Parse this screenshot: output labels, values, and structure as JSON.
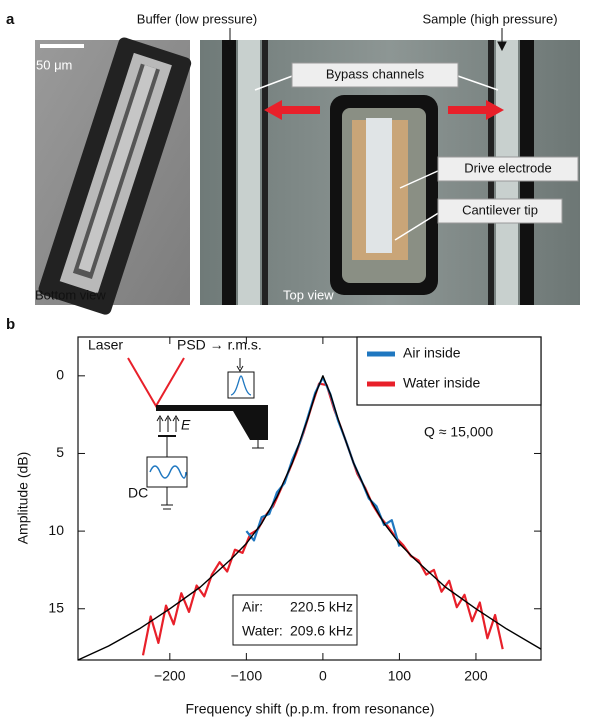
{
  "panel_a": {
    "label": "a",
    "buffer": "Buffer (low pressure)",
    "sample": "Sample (high pressure)",
    "scale_bar": "50 μm",
    "bypass": "Bypass channels",
    "drive": "Drive electrode",
    "tip": "Cantilever tip",
    "bottom_view": "Bottom view",
    "top_view": "Top view"
  },
  "chart_data": {
    "type": "line",
    "panel_label": "b",
    "xlabel": "Frequency shift (p.p.m. from resonance)",
    "ylabel": "Amplitude (dB)",
    "xlim": [
      -320,
      285
    ],
    "ylim": [
      -2.5,
      18.3
    ],
    "y_inverted": true,
    "xticks": [
      {
        "value": -200,
        "label": "−200"
      },
      {
        "value": -100,
        "label": "−100"
      },
      0,
      100,
      200
    ],
    "yticks": [
      0,
      5,
      10,
      15
    ],
    "legend": "upper right",
    "series": [
      {
        "name": "Air inside",
        "color": "#1f77c0",
        "x": [
          -100,
          -90,
          -80,
          -70,
          -60,
          -50,
          -40,
          -30,
          -20,
          -10,
          0,
          10,
          20,
          30,
          40,
          50,
          60,
          70,
          80,
          90,
          100
        ],
        "values": [
          10.0,
          10.6,
          9.1,
          8.9,
          7.5,
          6.9,
          5.4,
          4.3,
          2.7,
          1.1,
          0.1,
          1.2,
          2.9,
          4.2,
          5.6,
          6.7,
          7.9,
          8.4,
          9.6,
          9.3,
          11.0
        ]
      },
      {
        "name": "Water inside",
        "color": "#e8202a",
        "x": [
          -235,
          -225,
          -215,
          -205,
          -195,
          -185,
          -175,
          -165,
          -155,
          -145,
          -135,
          -125,
          -115,
          -105,
          -95,
          -85,
          -75,
          -65,
          -55,
          -45,
          -35,
          -25,
          -15,
          -5,
          5,
          15,
          25,
          35,
          45,
          55,
          65,
          75,
          85,
          95,
          105,
          115,
          125,
          135,
          145,
          155,
          165,
          175,
          185,
          195,
          205,
          215,
          225,
          235
        ],
        "values": [
          18.0,
          15.5,
          17.2,
          14.8,
          16.0,
          14.0,
          15.2,
          13.5,
          14.2,
          12.8,
          12.0,
          12.6,
          11.2,
          11.4,
          10.2,
          9.9,
          9.0,
          8.4,
          7.3,
          6.2,
          5.0,
          3.6,
          2.0,
          0.5,
          0.6,
          2.2,
          3.5,
          4.9,
          6.3,
          7.2,
          8.3,
          9.1,
          9.7,
          10.4,
          10.9,
          11.6,
          11.9,
          12.8,
          12.5,
          13.9,
          13.2,
          14.9,
          14.1,
          15.8,
          14.6,
          16.9,
          15.4,
          17.6
        ]
      }
    ],
    "fit": {
      "color": "#000000",
      "x": [
        -320,
        -280,
        -240,
        -200,
        -160,
        -120,
        -100,
        -80,
        -60,
        -40,
        -20,
        -10,
        0,
        10,
        20,
        40,
        60,
        80,
        100,
        120,
        160,
        200,
        240,
        285
      ],
      "values": [
        18.3,
        17.4,
        16.3,
        15.0,
        13.6,
        11.8,
        10.8,
        9.5,
        7.8,
        5.6,
        2.8,
        1.2,
        0,
        1.2,
        2.8,
        5.6,
        7.8,
        9.5,
        10.8,
        11.8,
        13.6,
        15.0,
        16.3,
        17.6
      ]
    },
    "inset": {
      "laser": "Laser",
      "psd": "PSD → r.m.s.",
      "field": "E",
      "dc": "DC"
    },
    "annotation": "Q ≈ 15,000",
    "resonances": [
      [
        "Air:",
        "220.5 kHz"
      ],
      [
        "Water:",
        "209.6 kHz"
      ]
    ]
  }
}
